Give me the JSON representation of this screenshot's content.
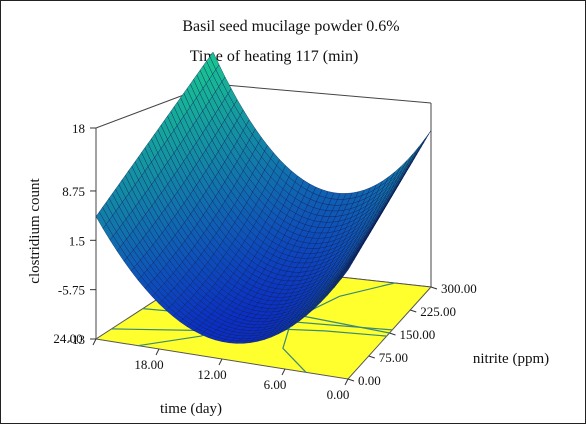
{
  "chart_data": {
    "type": "surface3d",
    "title_lines": [
      "Basil seed mucilage powder 0.6%",
      "Time of heating 117 (min)"
    ],
    "zlabel": "clostridium count",
    "xlabel": "time (day)",
    "ylabel": "nitrite (ppm)",
    "z_ticks": [
      "18",
      "8.75",
      "1.5",
      "-5.75",
      "-13"
    ],
    "x_ticks": [
      "24.00",
      "18.00",
      "12.00",
      "6.00",
      "0.00"
    ],
    "y_ticks": [
      "300.00",
      "225.00",
      "150.00",
      "75.00",
      "0.00"
    ],
    "z_range": [
      -13,
      18
    ],
    "x_range": [
      0,
      24
    ],
    "y_range": [
      0,
      300
    ],
    "surface": {
      "z_corners": {
        "time24_nitrite0": 5,
        "time0_nitrite300": 10,
        "time24_nitrite300": 18,
        "time0_nitrite0": 3
      },
      "z_center": -8
    },
    "contour_plane": true,
    "colors": {
      "surface_low": "#0b2ec4",
      "surface_high": "#19c98f",
      "contour_fill": "#ffff2e",
      "contour_lines": "#3a8a7a"
    }
  }
}
